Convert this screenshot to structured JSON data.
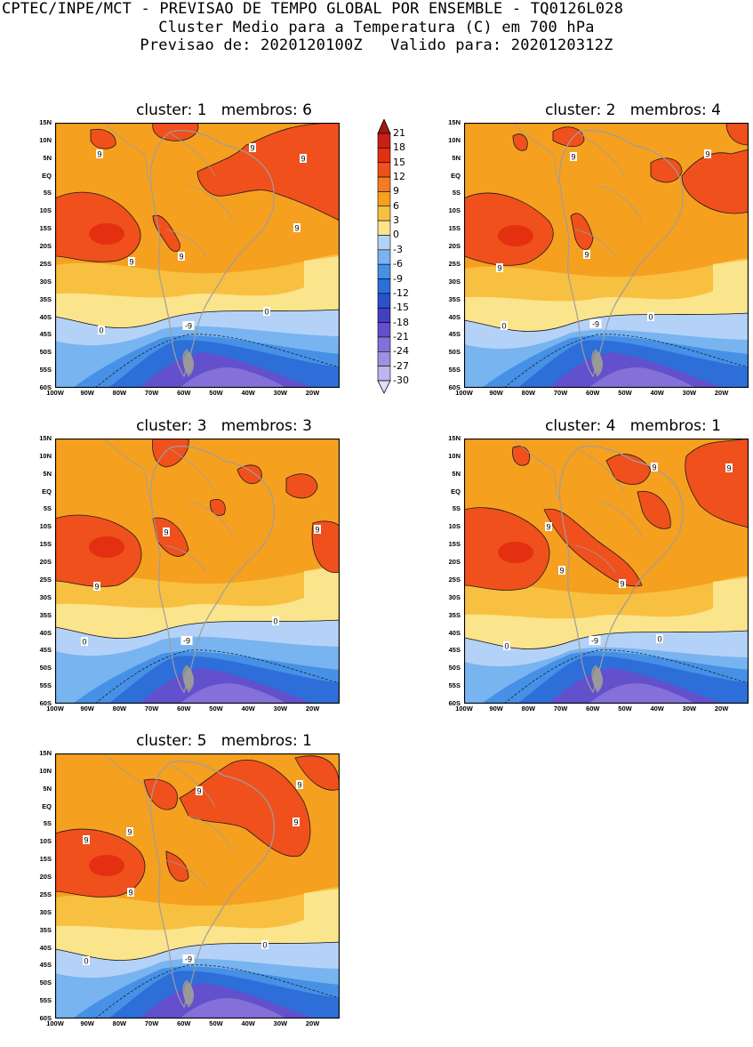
{
  "header": {
    "line1": "CPTEC/INPE/MCT - PREVISAO DE TEMPO GLOBAL POR ENSEMBLE - TQ0126L028",
    "line2": "Cluster Medio para a Temperatura (C) em 700 hPa",
    "line3": "Previsao de: 2020120100Z   Valido para: 2020120312Z"
  },
  "axes": {
    "lat": [
      "15N",
      "10N",
      "5N",
      "EQ",
      "5S",
      "10S",
      "15S",
      "20S",
      "25S",
      "30S",
      "35S",
      "40S",
      "45S",
      "50S",
      "55S",
      "60S"
    ],
    "lon": [
      "100W",
      "90W",
      "80W",
      "70W",
      "60W",
      "50W",
      "40W",
      "30W",
      "20W"
    ]
  },
  "panels": [
    {
      "title": "cluster: 1   membros: 6",
      "contour_labels": [
        "9",
        "9",
        "9",
        "9",
        "9",
        "9",
        "0",
        "0",
        "-9"
      ]
    },
    {
      "title": "cluster: 2   membros: 4",
      "contour_labels": [
        "9",
        "9",
        "9",
        "9",
        "0",
        "0",
        "-9"
      ]
    },
    {
      "title": "cluster: 3   membros: 3",
      "contour_labels": [
        "9",
        "9",
        "9",
        "0",
        "0",
        "-9"
      ]
    },
    {
      "title": "cluster: 4   membros: 1",
      "contour_labels": [
        "9",
        "9",
        "9",
        "9",
        "9",
        "0",
        "0",
        "-9"
      ]
    },
    {
      "title": "cluster: 5   membros: 1",
      "contour_labels": [
        "9",
        "9",
        "9",
        "9",
        "9",
        "9",
        "0",
        "0",
        "-9"
      ]
    }
  ],
  "colorbar": {
    "labels": [
      "21",
      "18",
      "15",
      "12",
      "9",
      "6",
      "3",
      "0",
      "-3",
      "-6",
      "-9",
      "-12",
      "-15",
      "-18",
      "-21",
      "-24",
      "-27",
      "-30"
    ],
    "colors": [
      "#a01818",
      "#c82014",
      "#e43010",
      "#f0501c",
      "#f47c20",
      "#f6a020",
      "#f8c040",
      "#fae48c",
      "#b4d2f8",
      "#78b4f0",
      "#4690e6",
      "#2e6ed8",
      "#2c50c8",
      "#4040c0",
      "#6250cc",
      "#8470d8",
      "#a090e0",
      "#c0b4ec",
      "#e4dcf8"
    ]
  },
  "colors": {
    "lightblue": "#b4d2f8",
    "blue2": "#78b4f0",
    "blue3": "#4690e6",
    "blue4": "#2e6ed8",
    "purple1": "#6250cc",
    "purple2": "#8470d8",
    "yellow": "#fae48c",
    "lorange": "#f8c040",
    "orange": "#f6a020",
    "dorange": "#f0501c",
    "red": "#e43010",
    "land": "#9e9e9e"
  }
}
